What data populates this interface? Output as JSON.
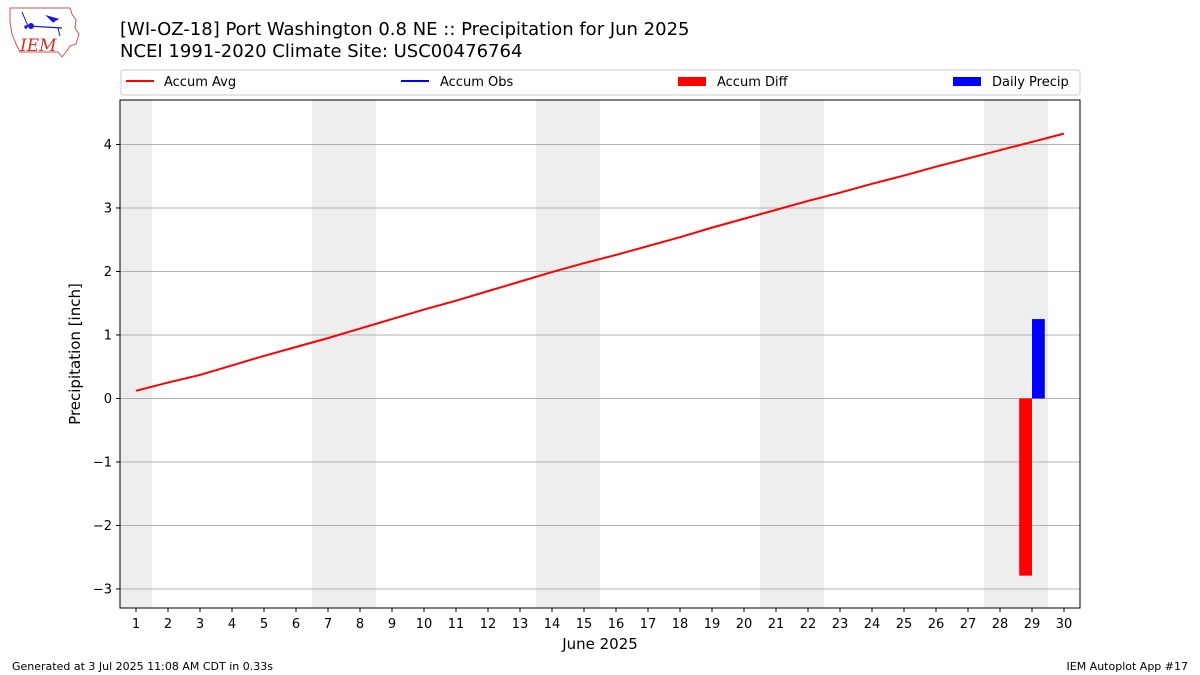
{
  "logo": {
    "text": "IEM"
  },
  "chart_data": {
    "type": "bar",
    "title": "[WI-OZ-18] Port Washington 0.8 NE :: Precipitation for Jun 2025",
    "subtitle": "NCEI 1991-2020 Climate Site: USC00476764",
    "xlabel": "June 2025",
    "ylabel": "Precipitation [inch]",
    "x": [
      1,
      2,
      3,
      4,
      5,
      6,
      7,
      8,
      9,
      10,
      11,
      12,
      13,
      14,
      15,
      16,
      17,
      18,
      19,
      20,
      21,
      22,
      23,
      24,
      25,
      26,
      27,
      28,
      29,
      30
    ],
    "x_tick_labels": [
      "1",
      "2",
      "3",
      "4",
      "5",
      "6",
      "7",
      "8",
      "9",
      "10",
      "11",
      "12",
      "13",
      "14",
      "15",
      "16",
      "17",
      "18",
      "19",
      "20",
      "21",
      "22",
      "23",
      "24",
      "25",
      "26",
      "27",
      "28",
      "29",
      "30"
    ],
    "xlim": [
      0.5,
      30.5
    ],
    "ylim": [
      -3.3,
      4.7
    ],
    "y_ticks": [
      -3,
      -2,
      -1,
      0,
      1,
      2,
      3,
      4
    ],
    "y_tick_labels": [
      "−3",
      "−2",
      "−1",
      "0",
      "1",
      "2",
      "3",
      "4"
    ],
    "grid": "horizontal",
    "legend_position": "top",
    "weekend_shading": [
      [
        0.5,
        1.5
      ],
      [
        6.5,
        8.5
      ],
      [
        13.5,
        15.5
      ],
      [
        20.5,
        22.5
      ],
      [
        27.5,
        29.5
      ]
    ],
    "shading_color": "#eeeeee",
    "series": [
      {
        "name": "Accum Avg",
        "type": "line",
        "color": "#ff0000",
        "x": [
          1,
          2,
          3,
          4,
          5,
          6,
          7,
          8,
          9,
          10,
          11,
          12,
          13,
          14,
          15,
          16,
          17,
          18,
          19,
          20,
          21,
          22,
          23,
          24,
          25,
          26,
          27,
          28,
          29,
          30
        ],
        "values": [
          0.12,
          0.25,
          0.37,
          0.52,
          0.67,
          0.81,
          0.95,
          1.1,
          1.25,
          1.4,
          1.54,
          1.69,
          1.84,
          1.99,
          2.13,
          2.26,
          2.4,
          2.54,
          2.69,
          2.83,
          2.97,
          3.11,
          3.24,
          3.38,
          3.51,
          3.65,
          3.78,
          3.91,
          4.04,
          4.17
        ]
      },
      {
        "name": "Accum Obs",
        "type": "line",
        "color": "#0000ff",
        "x": [],
        "values": []
      },
      {
        "name": "Accum Diff",
        "type": "bar",
        "color": "#ff0000",
        "x": [
          29
        ],
        "values": [
          -2.79
        ],
        "offset": -0.2
      },
      {
        "name": "Daily Precip",
        "type": "bar",
        "color": "#0000ff",
        "x": [
          29
        ],
        "values": [
          1.25
        ],
        "offset": 0.2
      }
    ]
  },
  "footer": {
    "left": "Generated at 3 Jul 2025 11:08 AM CDT in 0.33s",
    "right": "IEM Autoplot App #17"
  }
}
